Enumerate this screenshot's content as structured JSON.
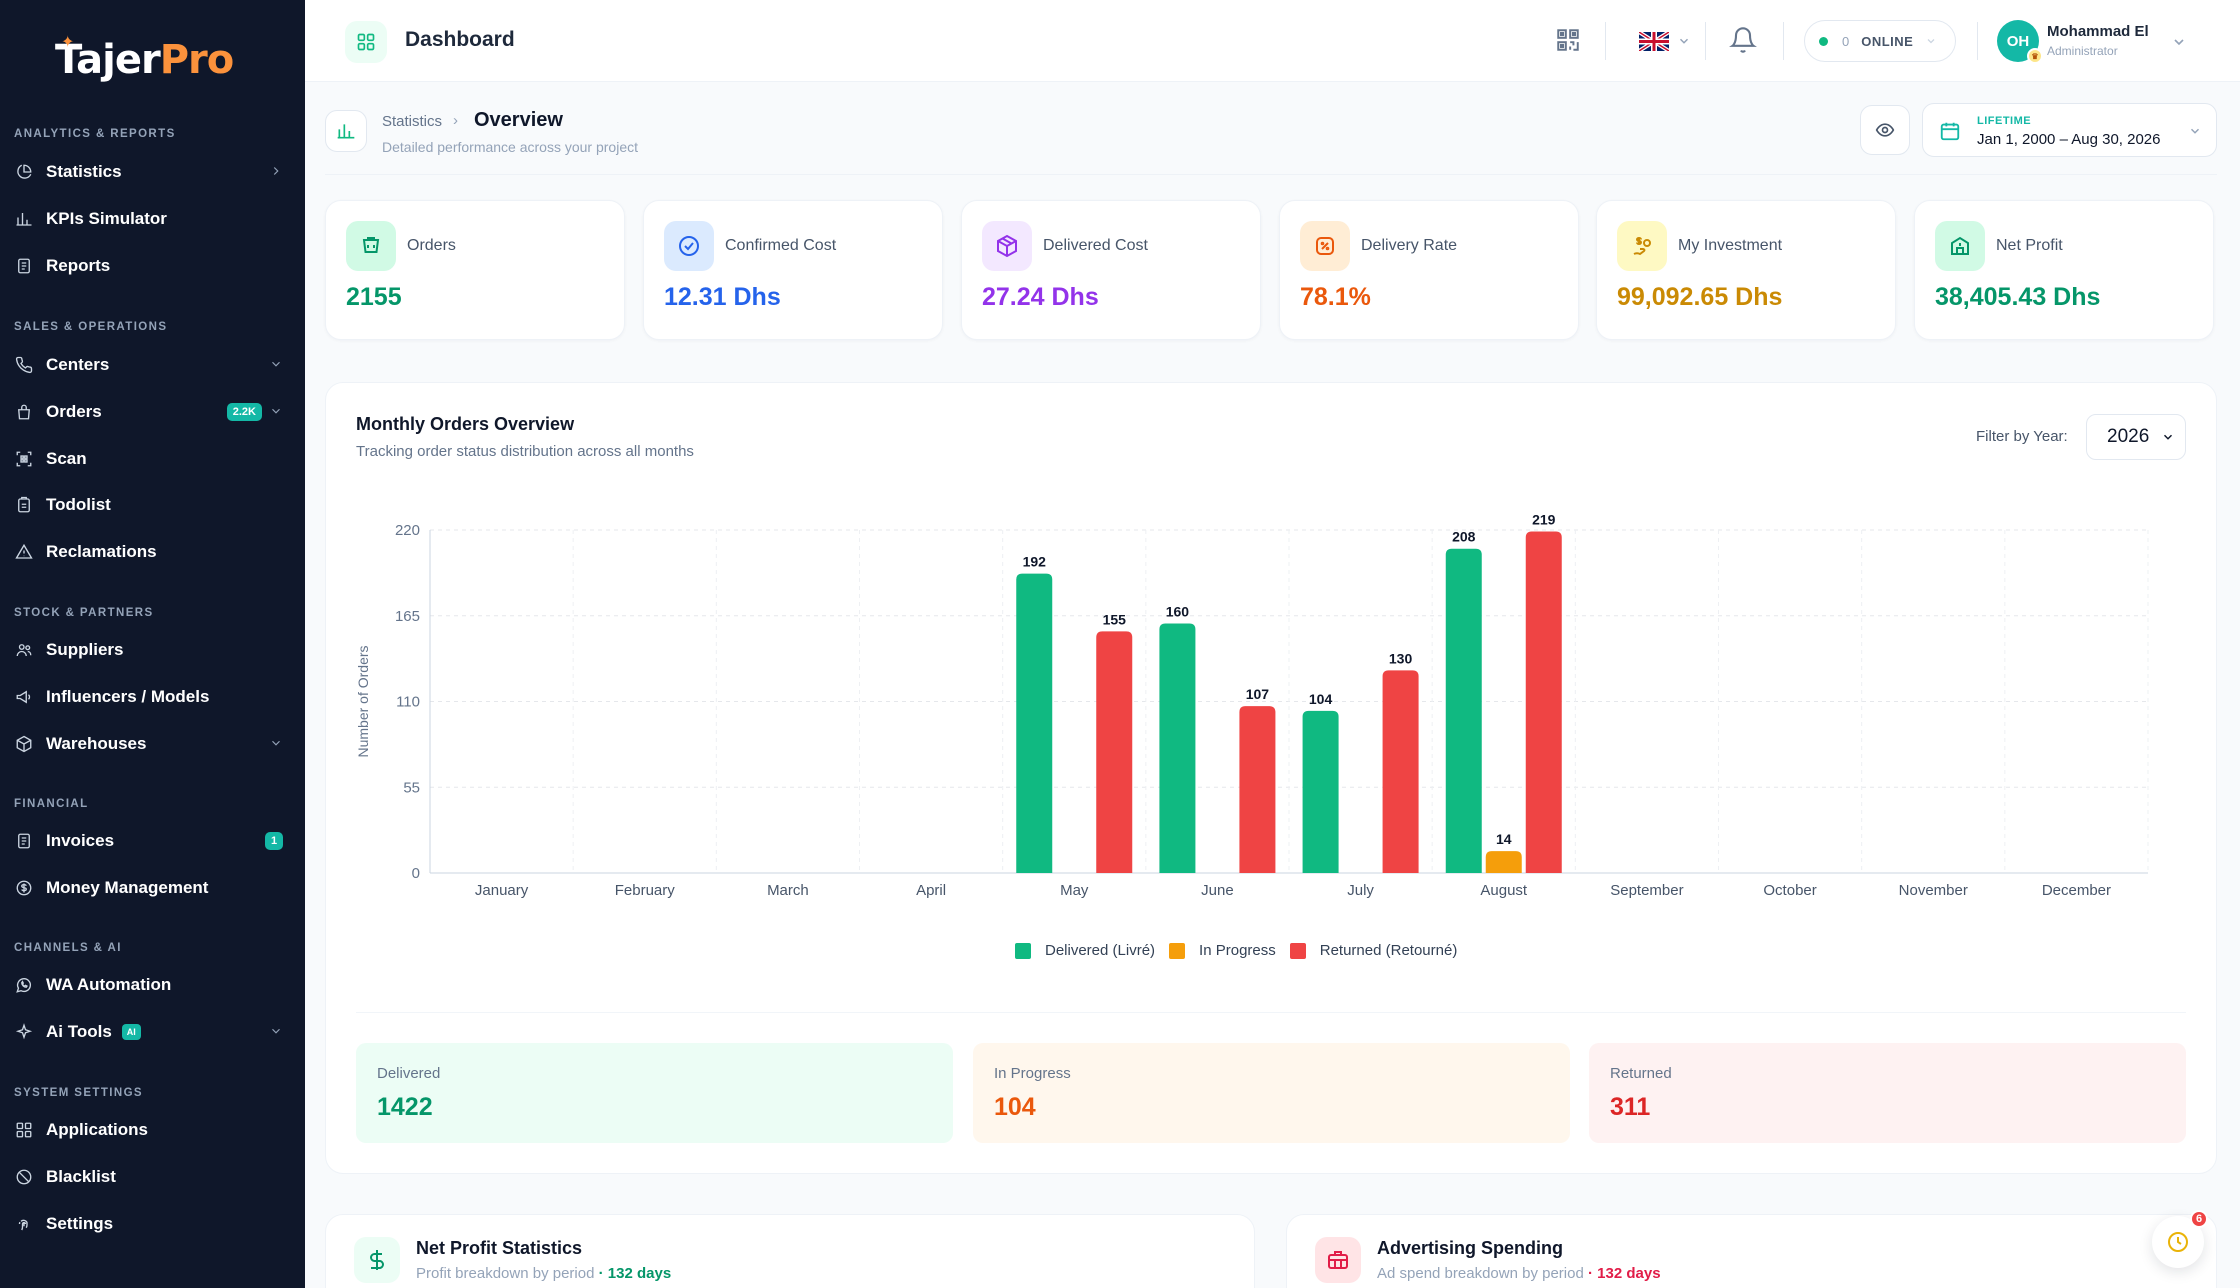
{
  "brand": {
    "name_part1": "Tajer",
    "name_part2": "Pro"
  },
  "sidebar": {
    "sections": [
      {
        "title": "ANALYTICS & REPORTS",
        "items": [
          {
            "label": "Statistics",
            "icon": "pie-chart-icon",
            "chevron": "right"
          },
          {
            "label": "KPIs Simulator",
            "icon": "bar-chart-icon"
          },
          {
            "label": "Reports",
            "icon": "document-icon"
          }
        ]
      },
      {
        "title": "SALES & OPERATIONS",
        "items": [
          {
            "label": "Centers",
            "icon": "phone-icon",
            "chevron": "down"
          },
          {
            "label": "Orders",
            "icon": "lock-bag-icon",
            "badge": "2.2K",
            "chevron": "down"
          },
          {
            "label": "Scan",
            "icon": "qr-scan-icon"
          },
          {
            "label": "Todolist",
            "icon": "clipboard-icon"
          },
          {
            "label": "Reclamations",
            "icon": "warning-icon"
          }
        ]
      },
      {
        "title": "STOCK & PARTNERS",
        "items": [
          {
            "label": "Suppliers",
            "icon": "users-icon"
          },
          {
            "label": "Influencers / Models",
            "icon": "megaphone-icon"
          },
          {
            "label": "Warehouses",
            "icon": "box-icon",
            "chevron": "down"
          }
        ]
      },
      {
        "title": "FINANCIAL",
        "items": [
          {
            "label": "Invoices",
            "icon": "invoice-icon",
            "badge": "1"
          },
          {
            "label": "Money Management",
            "icon": "dollar-circle-icon"
          }
        ]
      },
      {
        "title": "CHANNELS & AI",
        "items": [
          {
            "label": "WA Automation",
            "icon": "whatsapp-icon"
          },
          {
            "label": "Ai Tools",
            "icon": "sparkle-icon",
            "tag": "AI",
            "chevron": "down"
          }
        ]
      },
      {
        "title": "SYSTEM SETTINGS",
        "items": [
          {
            "label": "Applications",
            "icon": "grid-icon"
          },
          {
            "label": "Blacklist",
            "icon": "ban-icon"
          },
          {
            "label": "Settings",
            "icon": "fingerprint-icon"
          }
        ]
      }
    ]
  },
  "header": {
    "title": "Dashboard",
    "online_count": "0",
    "online_status": "ONLINE",
    "user_initials": "OH",
    "user_name": "Mohammad El",
    "user_role": "Administrator"
  },
  "subheader": {
    "breadcrumb_parent": "Statistics",
    "breadcrumb_current": "Overview",
    "description": "Detailed performance across your project",
    "date_label": "LIFETIME",
    "date_range": "Jan 1, 2000 – Aug 30, 2026"
  },
  "stats": [
    {
      "label": "Orders",
      "value": "2155",
      "color": "#059669",
      "bg": "#d1fae5",
      "icon": "cart-icon"
    },
    {
      "label": "Confirmed Cost",
      "value": "12.31 Dhs",
      "color": "#2563eb",
      "bg": "#dbeafe",
      "icon": "check-badge-icon"
    },
    {
      "label": "Delivered Cost",
      "value": "27.24 Dhs",
      "color": "#9333ea",
      "bg": "#f3e8ff",
      "icon": "package-icon"
    },
    {
      "label": "Delivery Rate",
      "value": "78.1%",
      "color": "#ea580c",
      "bg": "#ffedd5",
      "icon": "percent-badge-icon"
    },
    {
      "label": "My Investment",
      "value": "99,092.65 Dhs",
      "color": "#ca8a04",
      "bg": "#fef9c3",
      "icon": "investment-icon"
    },
    {
      "label": "Net Profit",
      "value": "38,405.43 Dhs",
      "color": "#059669",
      "bg": "#d1fae5",
      "icon": "profit-icon"
    }
  ],
  "chart_panel": {
    "title": "Monthly Orders Overview",
    "subtitle": "Tracking order status distribution across all months",
    "filter_label": "Filter by Year:",
    "year": "2026"
  },
  "chart_data": {
    "type": "bar",
    "categories": [
      "January",
      "February",
      "March",
      "April",
      "May",
      "June",
      "July",
      "August",
      "September",
      "October",
      "November",
      "December"
    ],
    "series": [
      {
        "name": "Delivered (Livré)",
        "color": "#10b981",
        "values": [
          0,
          0,
          0,
          0,
          192,
          160,
          104,
          208,
          0,
          0,
          0,
          0
        ]
      },
      {
        "name": "In Progress",
        "color": "#f59e0b",
        "values": [
          0,
          0,
          0,
          0,
          0,
          0,
          0,
          14,
          0,
          0,
          0,
          0
        ]
      },
      {
        "name": "Returned (Retourné)",
        "color": "#ef4444",
        "values": [
          0,
          0,
          0,
          0,
          155,
          107,
          130,
          219,
          0,
          0,
          0,
          0
        ]
      }
    ],
    "ylabel": "Number of Orders",
    "yticks": [
      0,
      55,
      110,
      165,
      220
    ],
    "ylim": [
      0,
      220
    ],
    "grid": true,
    "legend": "bottom"
  },
  "summary": [
    {
      "label": "Delivered",
      "value": "1422",
      "color": "#059669",
      "bg": "#ecfdf5"
    },
    {
      "label": "In Progress",
      "value": "104",
      "color": "#ea580c",
      "bg": "#fff7ed"
    },
    {
      "label": "Returned",
      "value": "311",
      "color": "#dc2626",
      "bg": "#fef2f2"
    }
  ],
  "bottom_cards": [
    {
      "title": "Net Profit Statistics",
      "subtitle": "Profit breakdown by period",
      "days": "· 132 days",
      "color": "#059669",
      "bg": "#ecfdf5",
      "icon": "dollar-icon"
    },
    {
      "title": "Advertising Spending",
      "subtitle": "Ad spend breakdown by period",
      "days": "· 132 days",
      "color": "#e11d48",
      "bg": "#ffe4e6",
      "icon": "briefcase-icon"
    }
  ],
  "fab": {
    "badge": "6",
    "icon": "clock-icon"
  }
}
